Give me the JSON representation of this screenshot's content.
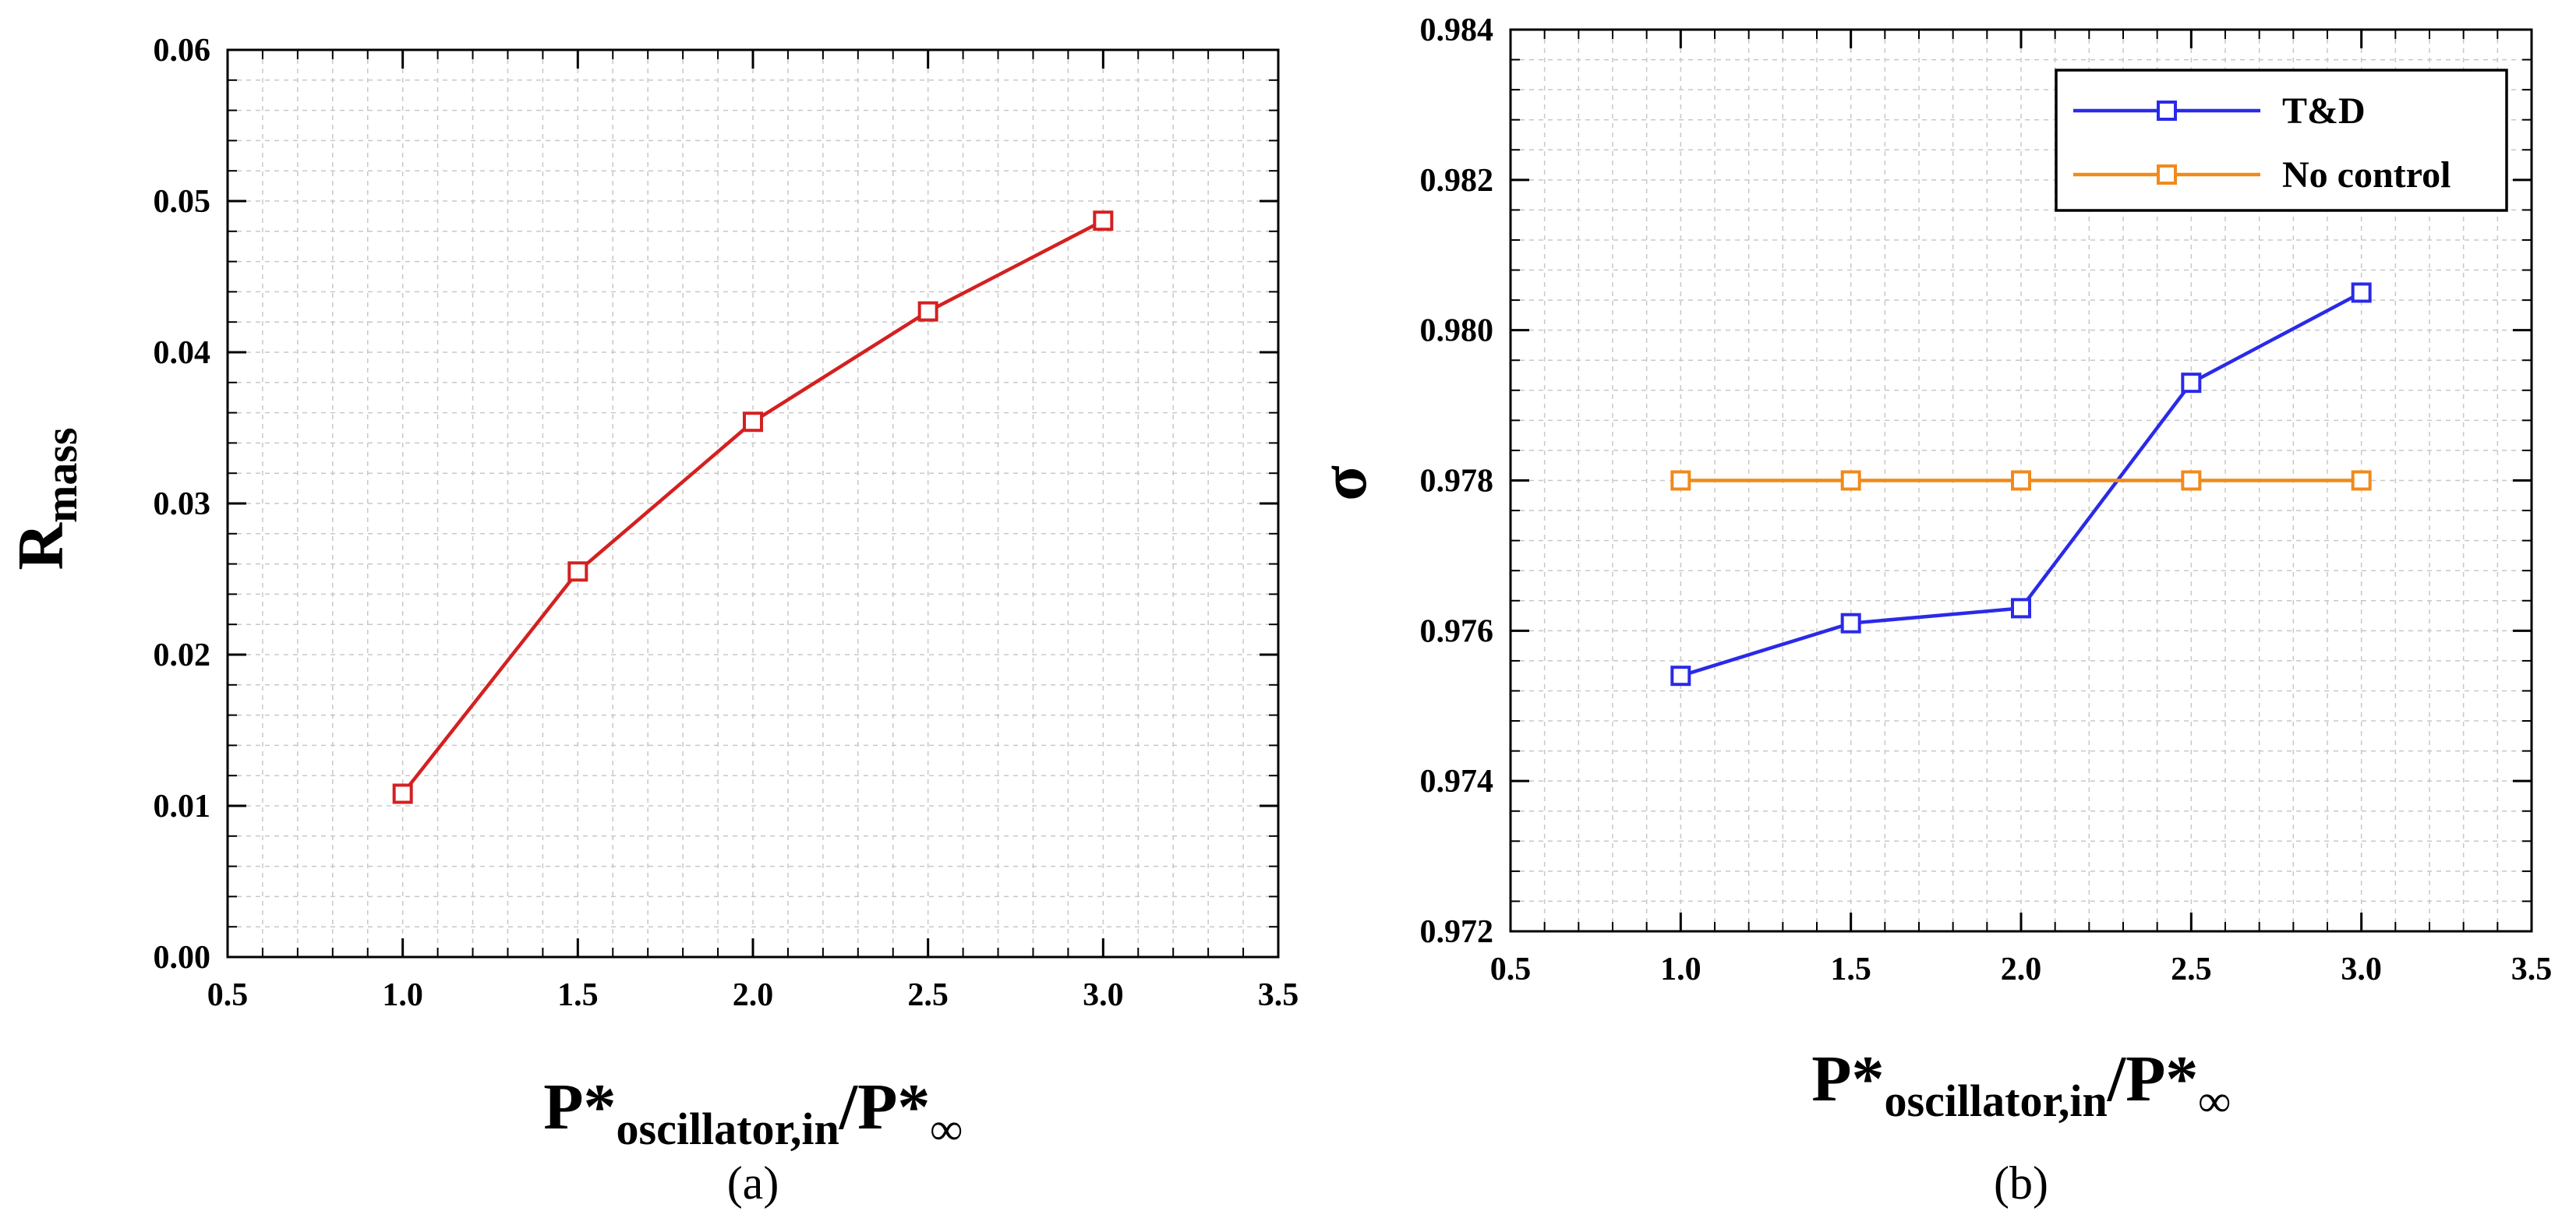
{
  "figure": {
    "panel_labels": [
      "(a)",
      "(b)"
    ]
  },
  "chart_data": [
    {
      "type": "line",
      "panel": "(a)",
      "title": "",
      "xlabel": {
        "main": "P*",
        "sub": "oscillator,in",
        "slash": "/P*",
        "sub2": "∞"
      },
      "ylabel": {
        "main": "R",
        "sub": "mass"
      },
      "xlim": [
        0.5,
        3.5
      ],
      "ylim": [
        0.0,
        0.06
      ],
      "xticks": [
        0.5,
        1.0,
        1.5,
        2.0,
        2.5,
        3.0,
        3.5
      ],
      "xtick_labels": [
        "0.5",
        "1.0",
        "1.5",
        "2.0",
        "2.5",
        "3.0",
        "3.5"
      ],
      "yticks": [
        0.0,
        0.01,
        0.02,
        0.03,
        0.04,
        0.05,
        0.06
      ],
      "ytick_labels": [
        "0.00",
        "0.01",
        "0.02",
        "0.03",
        "0.04",
        "0.05",
        "0.06"
      ],
      "grid": true,
      "legend": null,
      "series": [
        {
          "name": "R_mass",
          "color": "#d42020",
          "marker": "square",
          "x": [
            1.0,
            1.5,
            2.0,
            2.5,
            3.0
          ],
          "values": [
            0.0108,
            0.0255,
            0.0354,
            0.0427,
            0.0487
          ]
        }
      ]
    },
    {
      "type": "line",
      "panel": "(b)",
      "title": "",
      "xlabel": {
        "main": "P*",
        "sub": "oscillator,in",
        "slash": "/P*",
        "sub2": "∞"
      },
      "ylabel": {
        "main": "σ",
        "sub": ""
      },
      "xlim": [
        0.5,
        3.5
      ],
      "ylim": [
        0.972,
        0.984
      ],
      "xticks": [
        0.5,
        1.0,
        1.5,
        2.0,
        2.5,
        3.0,
        3.5
      ],
      "xtick_labels": [
        "0.5",
        "1.0",
        "1.5",
        "2.0",
        "2.5",
        "3.0",
        "3.5"
      ],
      "yticks": [
        0.972,
        0.974,
        0.976,
        0.978,
        0.98,
        0.982,
        0.984
      ],
      "ytick_labels": [
        "0.972",
        "0.974",
        "0.976",
        "0.978",
        "0.980",
        "0.982",
        "0.984"
      ],
      "grid": true,
      "legend": "top-right",
      "series": [
        {
          "name": "T&D",
          "color": "#2a2ae8",
          "marker": "square",
          "x": [
            1.0,
            1.5,
            2.0,
            2.5,
            3.0
          ],
          "values": [
            0.9754,
            0.9761,
            0.9763,
            0.9793,
            0.9805
          ]
        },
        {
          "name": "No control",
          "color": "#f08a1c",
          "marker": "square",
          "x": [
            1.0,
            1.5,
            2.0,
            2.5,
            3.0
          ],
          "values": [
            0.978,
            0.978,
            0.978,
            0.978,
            0.978
          ]
        }
      ]
    }
  ]
}
